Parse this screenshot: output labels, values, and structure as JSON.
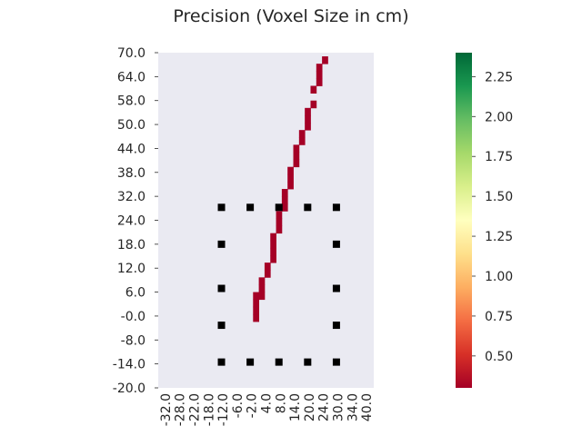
{
  "chart_data": {
    "type": "heatmap",
    "title": "Precision (Voxel Size in cm)",
    "xlabel": "",
    "ylabel": "",
    "x_range": [
      -33.0,
      42.0
    ],
    "y_range": [
      -20.0,
      71.0
    ],
    "x_tick_labels": [
      "-32.0",
      "-28.0",
      "-22.0",
      "-18.0",
      "-12.0",
      "-6.0",
      "-2.0",
      "4.0",
      "8.0",
      "14.0",
      "20.0",
      "24.0",
      "30.0",
      "34.0",
      "40.0"
    ],
    "y_tick_labels": [
      "70.0",
      "64.0",
      "58.0",
      "50.0",
      "44.0",
      "38.0",
      "32.0",
      "24.0",
      "18.0",
      "12.0",
      "6.0",
      "-0.0",
      "-8.0",
      "-14.0",
      "-20.0"
    ],
    "grid": false,
    "background": "#eaeaf2",
    "colorbar": {
      "colormap": "RdYlGn",
      "min": 0.3,
      "max": 2.4,
      "ticks": [
        "0.50",
        "0.75",
        "1.00",
        "1.25",
        "1.50",
        "1.75",
        "2.00",
        "2.25"
      ],
      "tick_values": [
        0.5,
        0.75,
        1.0,
        1.25,
        1.5,
        1.75,
        2.0,
        2.25
      ]
    },
    "cells": [
      {
        "x": 1.0,
        "y": -1.0,
        "value": 0.3
      },
      {
        "x": 1.0,
        "y": 1.0,
        "value": 0.3
      },
      {
        "x": 1.0,
        "y": 3.0,
        "value": 0.3
      },
      {
        "x": 1.0,
        "y": 5.0,
        "value": 0.3
      },
      {
        "x": 3.0,
        "y": 5.0,
        "value": 0.3
      },
      {
        "x": 3.0,
        "y": 7.0,
        "value": 0.3
      },
      {
        "x": 3.0,
        "y": 9.0,
        "value": 0.3
      },
      {
        "x": 5.0,
        "y": 11.0,
        "value": 0.3
      },
      {
        "x": 5.0,
        "y": 13.0,
        "value": 0.3
      },
      {
        "x": 7.0,
        "y": 15.0,
        "value": 0.3
      },
      {
        "x": 7.0,
        "y": 17.0,
        "value": 0.3
      },
      {
        "x": 7.0,
        "y": 19.0,
        "value": 0.3
      },
      {
        "x": 7.0,
        "y": 21.0,
        "value": 0.3
      },
      {
        "x": 9.0,
        "y": 23.0,
        "value": 0.3
      },
      {
        "x": 9.0,
        "y": 25.0,
        "value": 0.3
      },
      {
        "x": 9.0,
        "y": 27.0,
        "value": 0.3
      },
      {
        "x": 11.0,
        "y": 29.0,
        "value": 0.3
      },
      {
        "x": 11.0,
        "y": 31.0,
        "value": 0.3
      },
      {
        "x": 11.0,
        "y": 33.0,
        "value": 0.3
      },
      {
        "x": 13.0,
        "y": 35.0,
        "value": 0.3
      },
      {
        "x": 13.0,
        "y": 37.0,
        "value": 0.3
      },
      {
        "x": 13.0,
        "y": 39.0,
        "value": 0.3
      },
      {
        "x": 15.0,
        "y": 41.0,
        "value": 0.3
      },
      {
        "x": 15.0,
        "y": 43.0,
        "value": 0.3
      },
      {
        "x": 15.0,
        "y": 45.0,
        "value": 0.3
      },
      {
        "x": 17.0,
        "y": 47.0,
        "value": 0.3
      },
      {
        "x": 17.0,
        "y": 49.0,
        "value": 0.3
      },
      {
        "x": 19.0,
        "y": 51.0,
        "value": 0.3
      },
      {
        "x": 19.0,
        "y": 53.0,
        "value": 0.3
      },
      {
        "x": 19.0,
        "y": 55.0,
        "value": 0.3
      },
      {
        "x": 21.0,
        "y": 57.0,
        "value": 0.3
      },
      {
        "x": 21.0,
        "y": 61.0,
        "value": 0.3
      },
      {
        "x": 23.0,
        "y": 63.0,
        "value": 0.3
      },
      {
        "x": 23.0,
        "y": 65.0,
        "value": 0.3
      },
      {
        "x": 23.0,
        "y": 67.0,
        "value": 0.3
      },
      {
        "x": 25.0,
        "y": 69.0,
        "value": 0.3
      }
    ],
    "markers": [
      {
        "x": -11.0,
        "y": 29.0
      },
      {
        "x": -1.0,
        "y": 29.0
      },
      {
        "x": 9.0,
        "y": 29.0
      },
      {
        "x": 19.0,
        "y": 29.0
      },
      {
        "x": 29.0,
        "y": 29.0
      },
      {
        "x": -11.0,
        "y": 19.0
      },
      {
        "x": 29.0,
        "y": 19.0
      },
      {
        "x": -11.0,
        "y": 7.0
      },
      {
        "x": 29.0,
        "y": 7.0
      },
      {
        "x": -11.0,
        "y": -3.0
      },
      {
        "x": 29.0,
        "y": -3.0
      },
      {
        "x": -11.0,
        "y": -13.0
      },
      {
        "x": -1.0,
        "y": -13.0
      },
      {
        "x": 9.0,
        "y": -13.0
      },
      {
        "x": 19.0,
        "y": -13.0
      },
      {
        "x": 29.0,
        "y": -13.0
      }
    ]
  }
}
